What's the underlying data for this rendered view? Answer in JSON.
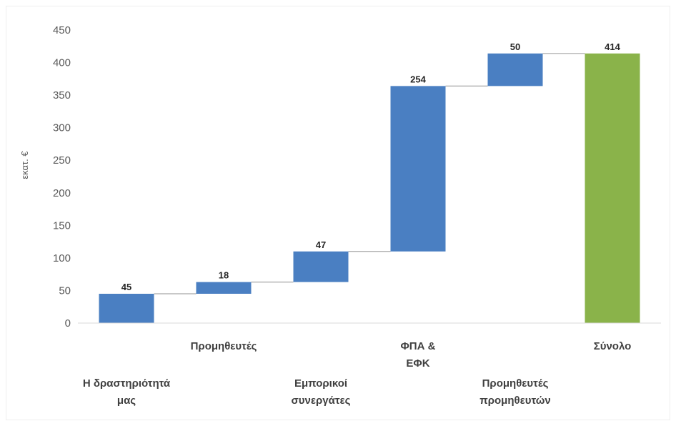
{
  "chart_data": {
    "type": "bar",
    "subtype": "waterfall",
    "title": "",
    "xlabel": "",
    "ylabel": "εκατ. €",
    "ylim": [
      0,
      450
    ],
    "yticks": [
      0,
      50,
      100,
      150,
      200,
      250,
      300,
      350,
      400,
      450
    ],
    "grid": false,
    "legend": "none",
    "categories": [
      {
        "lines": [
          "Η δραστηριότητά",
          "μας"
        ],
        "row": "low"
      },
      {
        "lines": [
          "Προμηθευτές"
        ],
        "row": "high"
      },
      {
        "lines": [
          "Εμπορικοί",
          "συνεργάτες"
        ],
        "row": "low"
      },
      {
        "lines": [
          "ΦΠΑ &",
          "ΕΦΚ"
        ],
        "row": "high"
      },
      {
        "lines": [
          "Προμηθευτές",
          "προμηθευτών"
        ],
        "row": "low"
      },
      {
        "lines": [
          "Σύνολο"
        ],
        "row": "high"
      }
    ],
    "values": [
      45,
      18,
      47,
      254,
      50,
      414
    ],
    "bar_kinds": [
      "increase",
      "increase",
      "increase",
      "increase",
      "increase",
      "total"
    ],
    "connectors": true,
    "colors": {
      "increase": "#4a7fc2",
      "total": "#8ab34a",
      "connector": "#a6a6a6",
      "axis": "#d9d9d9"
    }
  }
}
